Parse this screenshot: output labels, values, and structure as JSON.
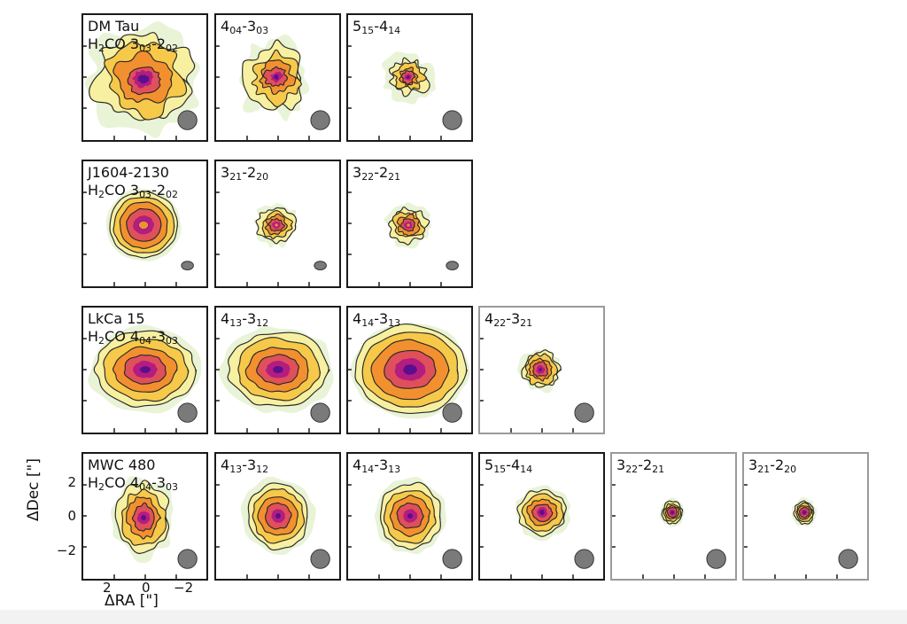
{
  "panels": [
    {
      "id": "dm-tau-303-202",
      "row": 0,
      "col": 0,
      "label_top": "DM Tau",
      "label_bottom": {
        "pre": "H",
        "sub1": "2",
        "mid": "CO 3",
        "sub2": "03",
        "dash": "-2",
        "sub3": "02"
      },
      "size": "large-ragged",
      "faint": false
    },
    {
      "id": "dm-tau-404-303",
      "row": 0,
      "col": 1,
      "line": {
        "a": "4",
        "as": "04",
        "b": "-3",
        "bs": "03"
      },
      "size": "medium-ragged",
      "faint": false
    },
    {
      "id": "dm-tau-515-414",
      "row": 0,
      "col": 2,
      "line": {
        "a": "5",
        "as": "15",
        "b": "-4",
        "bs": "14"
      },
      "size": "small-ragged",
      "faint": false
    },
    {
      "id": "j1604-303-202",
      "row": 1,
      "col": 0,
      "label_top": "J1604-2130",
      "label_bottom": {
        "pre": "H",
        "sub1": "2",
        "mid": "CO 3",
        "sub2": "03",
        "dash": "-2",
        "sub3": "02"
      },
      "size": "ring",
      "faint": false
    },
    {
      "id": "j1604-321-220",
      "row": 1,
      "col": 1,
      "line": {
        "a": "3",
        "as": "21",
        "b": "-2",
        "bs": "20"
      },
      "size": "small-ring",
      "faint": false
    },
    {
      "id": "j1604-322-221",
      "row": 1,
      "col": 2,
      "line": {
        "a": "3",
        "as": "22",
        "b": "-2",
        "bs": "21"
      },
      "size": "small-ring",
      "faint": false
    },
    {
      "id": "lkca15-404-303",
      "row": 2,
      "col": 0,
      "label_top": "LkCa 15",
      "label_bottom": {
        "pre": "H",
        "sub1": "2",
        "mid": "CO 4",
        "sub2": "04",
        "dash": "-3",
        "sub3": "03"
      },
      "size": "large-smooth",
      "faint": false
    },
    {
      "id": "lkca15-413-312",
      "row": 2,
      "col": 1,
      "line": {
        "a": "4",
        "as": "13",
        "b": "-3",
        "bs": "12"
      },
      "size": "large-smooth",
      "faint": false
    },
    {
      "id": "lkca15-414-313",
      "row": 2,
      "col": 2,
      "line": {
        "a": "4",
        "as": "14",
        "b": "-3",
        "bs": "13"
      },
      "size": "xlarge-smooth",
      "faint": false
    },
    {
      "id": "lkca15-422-321",
      "row": 2,
      "col": 3,
      "line": {
        "a": "4",
        "as": "22",
        "b": "-3",
        "bs": "21"
      },
      "size": "small-blob",
      "faint": true
    },
    {
      "id": "mwc480-404-303",
      "row": 3,
      "col": 0,
      "label_top": "MWC 480",
      "label_bottom": {
        "pre": "H",
        "sub1": "2",
        "mid": "CO 4",
        "sub2": "04",
        "dash": "-3",
        "sub3": "03"
      },
      "size": "medium-blob",
      "faint": false
    },
    {
      "id": "mwc480-413-312",
      "row": 3,
      "col": 1,
      "line": {
        "a": "4",
        "as": "13",
        "b": "-3",
        "bs": "12"
      },
      "size": "medium-smooth",
      "faint": false
    },
    {
      "id": "mwc480-414-313",
      "row": 3,
      "col": 2,
      "line": {
        "a": "4",
        "as": "14",
        "b": "-3",
        "bs": "13"
      },
      "size": "medium-smooth",
      "faint": false
    },
    {
      "id": "mwc480-515-414",
      "row": 3,
      "col": 3,
      "line": {
        "a": "5",
        "as": "15",
        "b": "-4",
        "bs": "14"
      },
      "size": "medium-small",
      "faint": false
    },
    {
      "id": "mwc480-322-221",
      "row": 3,
      "col": 4,
      "line": {
        "a": "3",
        "as": "22",
        "b": "-2",
        "bs": "21"
      },
      "size": "tiny",
      "faint": true
    },
    {
      "id": "mwc480-321-220",
      "row": 3,
      "col": 5,
      "line": {
        "a": "3",
        "as": "21",
        "b": "-2",
        "bs": "20"
      },
      "size": "tiny",
      "faint": true
    }
  ],
  "axes": {
    "ylabel": "ΔDec [\"]",
    "xlabel": "ΔRA [\"]",
    "yticks": [
      "2",
      "0",
      "−2"
    ],
    "xticks": [
      "2",
      "0",
      "−2"
    ]
  },
  "colors": {
    "outer": "#e9f3d6",
    "c1": "#f7f0a0",
    "c2": "#f6c94a",
    "c3": "#f2902f",
    "c4": "#e0505a",
    "c5": "#b31d7f",
    "c6": "#5a0f8c",
    "c7": "#120833",
    "beam": "#7a7a7a"
  }
}
